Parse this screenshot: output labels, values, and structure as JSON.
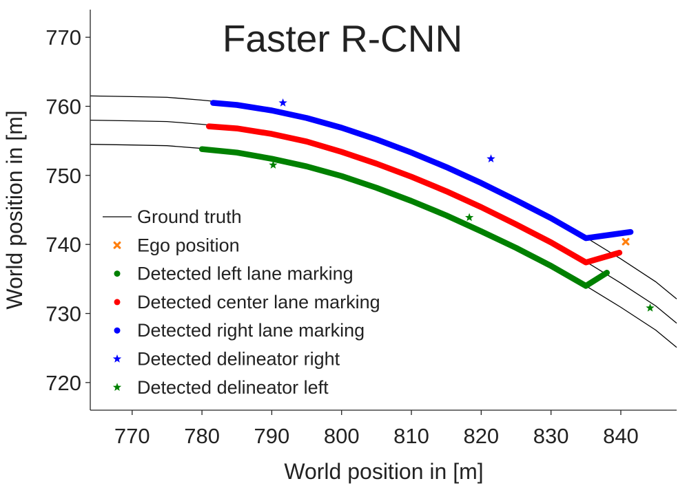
{
  "chart_data": {
    "type": "line",
    "title": "Faster R-CNN",
    "xlabel": "World position in [m]",
    "ylabel": "World position in [m]",
    "xlim": [
      764,
      848
    ],
    "ylim": [
      716,
      774
    ],
    "xticks": [
      770,
      780,
      790,
      800,
      810,
      820,
      830,
      840
    ],
    "yticks": [
      720,
      730,
      740,
      750,
      760,
      770
    ],
    "grid": false,
    "legend_position": "center-left",
    "series": [
      {
        "name": "Ground truth",
        "role": "ground-truth",
        "color": "#000000",
        "marker": "line",
        "curves": [
          {
            "x": [
              764,
              770,
              775,
              780,
              785,
              790,
              795,
              800,
              805,
              810,
              815,
              820,
              825,
              830,
              835,
              840,
              845,
              848
            ],
            "y": [
              761.5,
              761.4,
              761.3,
              760.9,
              760.4,
              759.6,
              758.5,
              757.0,
              755.3,
              753.4,
              751.3,
              749.0,
              746.5,
              743.9,
              741.0,
              737.9,
              734.6,
              732.1
            ]
          },
          {
            "x": [
              764,
              770,
              775,
              780,
              785,
              790,
              795,
              800,
              805,
              810,
              815,
              820,
              825,
              830,
              835,
              840,
              845,
              848
            ],
            "y": [
              758.0,
              757.9,
              757.8,
              757.4,
              756.9,
              756.1,
              755.0,
              753.5,
              751.8,
              749.9,
              747.8,
              745.5,
              743.0,
              740.4,
              737.5,
              734.4,
              731.1,
              728.6
            ]
          },
          {
            "x": [
              764,
              770,
              775,
              780,
              785,
              790,
              795,
              800,
              805,
              810,
              815,
              820,
              825,
              830,
              835,
              840,
              845,
              848
            ],
            "y": [
              754.5,
              754.4,
              754.3,
              753.9,
              753.4,
              752.6,
              751.5,
              750.0,
              748.3,
              746.4,
              744.3,
              742.0,
              739.5,
              736.9,
              734.0,
              730.9,
              727.6,
              725.1
            ]
          }
        ]
      },
      {
        "name": "Ego position",
        "role": "ego",
        "color": "#ff7f0e",
        "marker": "x",
        "points": [
          {
            "x": 840.7,
            "y": 740.4
          }
        ]
      },
      {
        "name": "Detected left lane marking",
        "role": "lane",
        "color": "#008000",
        "marker": "dot",
        "x": [
          780.0,
          785,
          790,
          795,
          800,
          805,
          810,
          815,
          820,
          825,
          830,
          835,
          838.0
        ],
        "y": [
          753.8,
          753.3,
          752.4,
          751.3,
          749.9,
          748.2,
          746.3,
          744.2,
          741.9,
          739.5,
          736.9,
          734.0,
          735.9
        ]
      },
      {
        "name": "Detected center lane marking",
        "role": "lane",
        "color": "#ff0000",
        "marker": "dot",
        "x": [
          781.0,
          785,
          790,
          795,
          800,
          805,
          810,
          815,
          820,
          825,
          830,
          835,
          839.8
        ],
        "y": [
          757.1,
          756.8,
          756.0,
          754.9,
          753.4,
          751.7,
          749.8,
          747.7,
          745.4,
          742.9,
          740.3,
          737.4,
          738.8
        ]
      },
      {
        "name": "Detected right lane marking",
        "role": "lane",
        "color": "#0000ff",
        "marker": "dot",
        "x": [
          781.6,
          785,
          790,
          795,
          800,
          805,
          810,
          815,
          820,
          825,
          830,
          835,
          841.4
        ],
        "y": [
          760.5,
          760.2,
          759.4,
          758.3,
          756.9,
          755.2,
          753.3,
          751.2,
          748.9,
          746.4,
          743.8,
          740.9,
          741.8
        ]
      },
      {
        "name": "Detected delineator right",
        "role": "delineator",
        "color": "#0000ff",
        "marker": "star",
        "points": [
          {
            "x": 791.6,
            "y": 760.5
          },
          {
            "x": 821.4,
            "y": 752.4
          }
        ]
      },
      {
        "name": "Detected delineator left",
        "role": "delineator",
        "color": "#008000",
        "marker": "star",
        "points": [
          {
            "x": 790.2,
            "y": 751.5
          },
          {
            "x": 818.3,
            "y": 743.9
          },
          {
            "x": 844.2,
            "y": 730.8
          }
        ]
      }
    ]
  }
}
